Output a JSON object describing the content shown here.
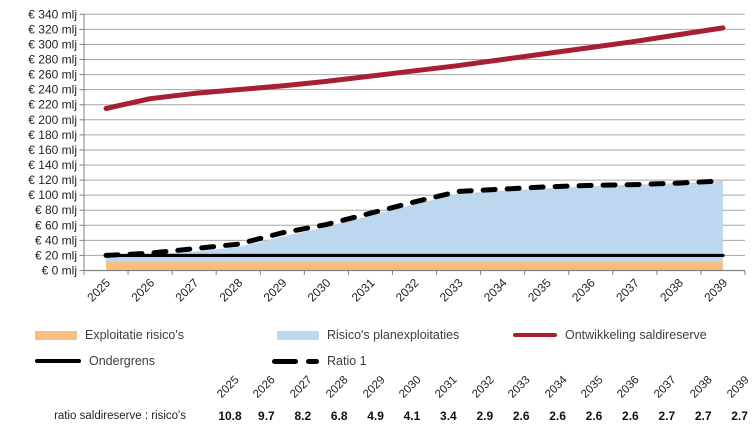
{
  "chart_data": {
    "type": "area+line",
    "title": "",
    "xlabel": "",
    "ylabel": "",
    "x": [
      "2025",
      "2026",
      "2027",
      "2028",
      "2029",
      "2030",
      "2031",
      "2032",
      "2033",
      "2034",
      "2035",
      "2036",
      "2037",
      "2038",
      "2039"
    ],
    "ylim": [
      0,
      340
    ],
    "y_step": 20,
    "grid": true,
    "legend_position": "bottom",
    "y_tick_labels": [
      "€ 0 mlj",
      "€ 20 mlj",
      "€ 40 mlj",
      "€ 60 mlj",
      "€ 80 mlj",
      "€ 100 mlj",
      "€ 120 mlj",
      "€ 140 mlj",
      "€ 160 mlj",
      "€ 180 mlj",
      "€ 200 mlj",
      "€ 220 mlj",
      "€ 240 mlj",
      "€ 260 mlj",
      "€ 280 mlj",
      "€ 300 mlj",
      "€ 320 mlj",
      "€ 340 mlj"
    ],
    "series": [
      {
        "name": "Exploitatie risico's",
        "type": "area",
        "stacked": true,
        "color": "#f9bf80",
        "values": [
          12,
          12,
          12,
          12,
          12,
          12,
          12,
          12,
          12,
          12,
          12,
          12,
          12,
          12,
          12
        ]
      },
      {
        "name": "Risico's planexploitaties",
        "type": "area",
        "stacked": true,
        "color": "#bdd7ee",
        "values": [
          9,
          10,
          13,
          19,
          33,
          46,
          61,
          76,
          90,
          94,
          97,
          100,
          102,
          104,
          107
        ]
      },
      {
        "name": "Ondergrens",
        "type": "line",
        "color": "#000000",
        "width": 3.2,
        "dash": false,
        "values": [
          20,
          20,
          20,
          20,
          20,
          20,
          20,
          20,
          20,
          20,
          20,
          20,
          20,
          20,
          20
        ]
      },
      {
        "name": "Ratio 1",
        "type": "line",
        "color": "#000000",
        "width": 5,
        "dash": true,
        "values": [
          20,
          23,
          29,
          35,
          50,
          61,
          76,
          91,
          105,
          108,
          111,
          113,
          114,
          116,
          119
        ]
      },
      {
        "name": "Ontwikkeling saldireserve",
        "type": "line",
        "color": "#a81e35",
        "width": 5,
        "dash": false,
        "values": [
          215,
          228,
          235,
          240,
          245,
          251,
          258,
          265,
          272,
          280,
          288,
          296,
          304,
          313,
          322
        ]
      }
    ]
  },
  "legend": {
    "items": [
      {
        "label": "Exploitatie risico's",
        "swatch": "area",
        "color": "#f9bf80"
      },
      {
        "label": "Risico's planexploitaties",
        "swatch": "area",
        "color": "#bdd7ee"
      },
      {
        "label": "Ontwikkeling saldireserve",
        "swatch": "line",
        "color": "#a81e35"
      },
      {
        "label": "Ondergrens",
        "swatch": "thin-line",
        "color": "#000000"
      },
      {
        "label": "Ratio 1",
        "swatch": "dash",
        "color": "#000000"
      }
    ]
  },
  "ratio_table": {
    "row_label": "ratio saldireserve : risico's",
    "years": [
      "2025",
      "2026",
      "2027",
      "2028",
      "2029",
      "2030",
      "2031",
      "2032",
      "2033",
      "2034",
      "2035",
      "2036",
      "2037",
      "2038",
      "2039"
    ],
    "values": [
      "10.8",
      "9.7",
      "8.2",
      "6.8",
      "4.9",
      "4.1",
      "3.4",
      "2.9",
      "2.6",
      "2.6",
      "2.6",
      "2.6",
      "2.7",
      "2.7",
      "2.7"
    ]
  },
  "colors": {
    "accent_red": "#a81e35",
    "area_orange": "#f9bf80",
    "area_blue": "#bdd7ee",
    "grid": "#a6a6a6",
    "axis": "#808080"
  }
}
